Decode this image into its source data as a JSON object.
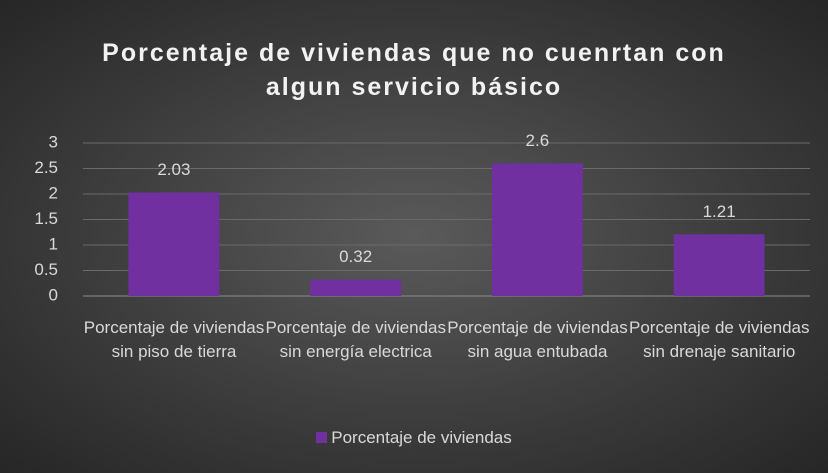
{
  "chart_data": {
    "type": "bar",
    "title": "Porcentaje de viviendas que no cuenrtan con algun servicio básico",
    "categories": [
      "Porcentaje de viviendas sin piso de tierra",
      "Porcentaje de viviendas sin energía electrica",
      "Porcentaje de viviendas sin agua entubada",
      "Porcentaje de viviendas sin drenaje sanitario"
    ],
    "series": [
      {
        "name": "Porcentaje de viviendas",
        "color": "#7030a0",
        "values": [
          2.03,
          0.32,
          2.6,
          1.21
        ]
      }
    ],
    "ylim": [
      0,
      3
    ],
    "yticks": [
      0,
      0.5,
      1,
      1.5,
      2,
      2.5,
      3
    ],
    "grid": true,
    "legend": "bottom"
  }
}
